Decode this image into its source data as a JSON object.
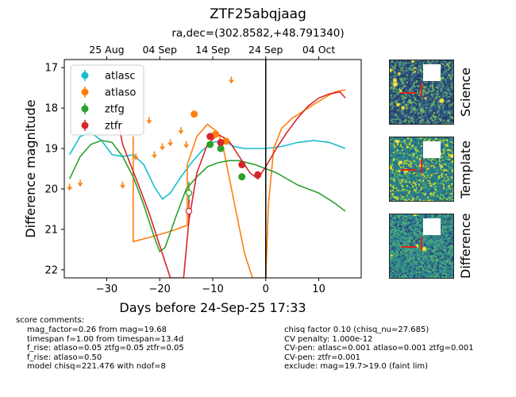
{
  "header": {
    "object_name": "ZTF25abqjaag",
    "coords": "ra,dec=(302.8582,+48.791340)"
  },
  "chart_data": {
    "type": "scatter",
    "xlabel": "Days before 24-Sep-25 17:33",
    "ylabel": "Difference magnitude",
    "xlim": [
      -38,
      18
    ],
    "ylim": [
      22.2,
      16.8
    ],
    "y_inverted": true,
    "x_ticks": [
      -30,
      -20,
      -10,
      0,
      10
    ],
    "y_ticks": [
      17,
      18,
      19,
      20,
      21,
      22
    ],
    "top_axis": {
      "ticks": [
        {
          "label": "25 Aug",
          "x": -30
        },
        {
          "label": "04 Sep",
          "x": -20
        },
        {
          "label": "14 Sep",
          "x": -10
        },
        {
          "label": "24 Sep",
          "x": 0
        },
        {
          "label": "04 Oct",
          "x": 10
        }
      ]
    },
    "legend_position": "top-left",
    "colors": {
      "atlasc": "#17becf",
      "atlaso": "#ff7f0e",
      "ztfg": "#2ca02c",
      "ztfr": "#d62728",
      "reference": "#000000"
    },
    "vertical_line_x": 0,
    "series": [
      {
        "name": "atlasc",
        "points": [],
        "model": [
          [
            -37,
            19.15
          ],
          [
            -35,
            18.7
          ],
          [
            -33,
            18.6
          ],
          [
            -31,
            18.8
          ],
          [
            -29,
            19.15
          ],
          [
            -27,
            19.2
          ],
          [
            -25,
            19.15
          ],
          [
            -23,
            19.4
          ],
          [
            -21,
            19.95
          ],
          [
            -19.5,
            20.25
          ],
          [
            -18,
            20.1
          ],
          [
            -16,
            19.7
          ],
          [
            -14,
            19.35
          ],
          [
            -12,
            19.05
          ],
          [
            -10,
            18.85
          ],
          [
            -8,
            18.8
          ],
          [
            -6,
            18.95
          ],
          [
            -4,
            19.0
          ],
          [
            -2,
            19.0
          ],
          [
            0,
            19.0
          ],
          [
            3,
            18.95
          ],
          [
            6,
            18.85
          ],
          [
            9,
            18.8
          ],
          [
            12,
            18.85
          ],
          [
            15,
            19.0
          ]
        ]
      },
      {
        "name": "atlaso",
        "points": [
          {
            "x": -13.5,
            "y": 18.15
          },
          {
            "x": -9.5,
            "y": 18.65
          },
          {
            "x": -7.5,
            "y": 18.82
          }
        ],
        "upper_limits": [
          {
            "x": -37,
            "y": 19.95
          },
          {
            "x": -35,
            "y": 19.85
          },
          {
            "x": -27,
            "y": 19.9
          },
          {
            "x": -24.5,
            "y": 19.2
          },
          {
            "x": -22,
            "y": 18.3
          },
          {
            "x": -21,
            "y": 19.15
          },
          {
            "x": -19.5,
            "y": 18.95
          },
          {
            "x": -18,
            "y": 18.85
          },
          {
            "x": -16,
            "y": 18.55
          },
          {
            "x": -15,
            "y": 18.9
          },
          {
            "x": -6.5,
            "y": 17.3
          }
        ],
        "model": [
          [
            -25,
            18.7
          ],
          [
            -25,
            21.3
          ],
          [
            -22,
            21.2
          ],
          [
            -18,
            21.05
          ],
          [
            -14.8,
            20.9
          ],
          [
            -14.8,
            19.4
          ],
          [
            -13,
            18.7
          ],
          [
            -11,
            18.4
          ],
          [
            -9,
            18.6
          ],
          [
            -8,
            19.0
          ],
          [
            -6,
            20.3
          ],
          [
            -4,
            21.6
          ],
          [
            -2.5,
            22.2
          ],
          [
            0,
            22.2
          ],
          [
            0.5,
            20.4
          ],
          [
            1.5,
            19.0
          ],
          [
            3,
            18.5
          ],
          [
            5,
            18.25
          ],
          [
            8,
            18.0
          ],
          [
            11,
            17.75
          ],
          [
            13,
            17.6
          ],
          [
            15,
            17.55
          ]
        ]
      },
      {
        "name": "ztfg",
        "points": [
          {
            "x": -10.5,
            "y": 18.9
          },
          {
            "x": -8.5,
            "y": 19.0
          },
          {
            "x": -4.5,
            "y": 19.7
          }
        ],
        "upper_limits": [
          {
            "x": -14.5,
            "y": 20.1
          }
        ],
        "model": [
          [
            -37,
            19.75
          ],
          [
            -35,
            19.2
          ],
          [
            -33,
            18.9
          ],
          [
            -31,
            18.8
          ],
          [
            -29,
            18.85
          ],
          [
            -27,
            19.2
          ],
          [
            -25,
            19.7
          ],
          [
            -23,
            20.4
          ],
          [
            -21,
            21.2
          ],
          [
            -20,
            21.55
          ],
          [
            -19,
            21.45
          ],
          [
            -17,
            20.7
          ],
          [
            -15,
            20.0
          ],
          [
            -13,
            19.7
          ],
          [
            -11,
            19.45
          ],
          [
            -9,
            19.35
          ],
          [
            -7,
            19.3
          ],
          [
            -5,
            19.3
          ],
          [
            -2,
            19.4
          ],
          [
            2,
            19.6
          ],
          [
            6,
            19.9
          ],
          [
            10,
            20.1
          ],
          [
            13,
            20.35
          ],
          [
            15,
            20.55
          ]
        ]
      },
      {
        "name": "ztfr",
        "points": [
          {
            "x": -10.5,
            "y": 18.7
          },
          {
            "x": -8.5,
            "y": 18.85
          },
          {
            "x": -4.5,
            "y": 19.4
          },
          {
            "x": -1.5,
            "y": 19.65
          }
        ],
        "upper_limits": [
          {
            "x": -14.5,
            "y": 20.55
          }
        ],
        "model": [
          [
            -28,
            18.25
          ],
          [
            -27,
            18.9
          ],
          [
            -25.5,
            19.4
          ],
          [
            -24,
            19.9
          ],
          [
            -22,
            20.6
          ],
          [
            -20,
            21.4
          ],
          [
            -18,
            22.2
          ],
          [
            -15.5,
            22.2
          ],
          [
            -14.5,
            20.8
          ],
          [
            -13,
            19.6
          ],
          [
            -11,
            18.9
          ],
          [
            -9,
            18.65
          ],
          [
            -7,
            18.8
          ],
          [
            -5,
            19.2
          ],
          [
            -3,
            19.6
          ],
          [
            -1.5,
            19.75
          ],
          [
            0,
            19.45
          ],
          [
            2,
            19.0
          ],
          [
            4,
            18.6
          ],
          [
            6,
            18.25
          ],
          [
            8,
            17.95
          ],
          [
            10,
            17.75
          ],
          [
            12,
            17.65
          ],
          [
            14,
            17.6
          ],
          [
            15,
            17.75
          ]
        ]
      }
    ]
  },
  "stamps": [
    {
      "label": "Science",
      "bg": "#2b4d7a"
    },
    {
      "label": "Template",
      "bg": "#2a7c8c"
    },
    {
      "label": "Difference",
      "bg": "#2f8a8c"
    }
  ],
  "comments": {
    "left_heading": "score comments:",
    "left_lines": "mag_factor=0.26 from mag=19.68\ntimespan f=1.00 from timespan=13.4d\nf_rise: atlaso=0.05 ztfg=0.05 ztfr=0.05\nf_rise: atlaso=0.50\nmodel chisq=221.476 with ndof=8",
    "right_lines": "chisq factor 0.10 (chisq_nu=27.685)\nCV penalty: 1.000e-12\nCV-pen: atlasc=0.001 atlaso=0.001 ztfg=0.001\nCV-pen: ztfr=0.001\nexclude: mag=19.7>19.0 (faint lim)"
  }
}
